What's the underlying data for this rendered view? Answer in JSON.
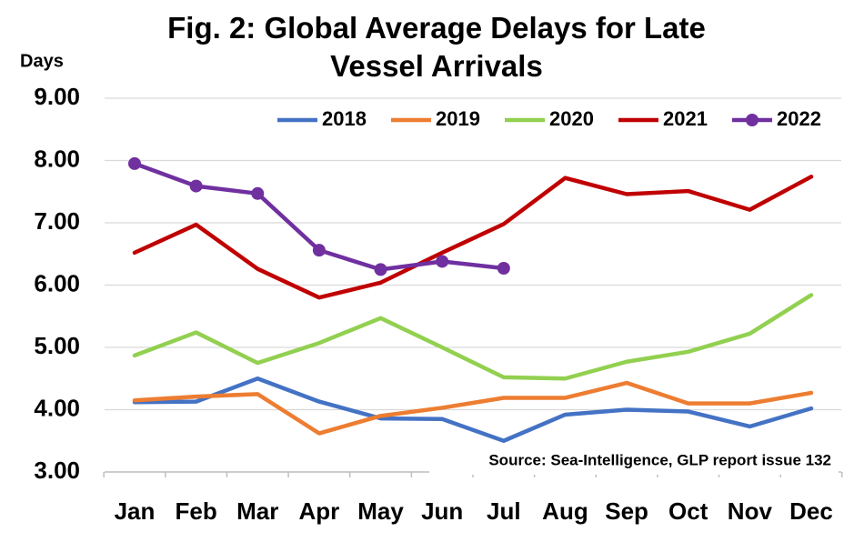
{
  "chart_data": {
    "type": "line",
    "title": "Fig. 2: Global Average Delays for Late Vessel Arrivals",
    "y_label": "Days",
    "annotation": "Source: Sea-Intelligence, GLP report issue 132",
    "categories": [
      "Jan",
      "Feb",
      "Mar",
      "Apr",
      "May",
      "Jun",
      "Jul",
      "Aug",
      "Sep",
      "Oct",
      "Nov",
      "Dec"
    ],
    "series": [
      {
        "name": "2018",
        "color": "#4472c4",
        "values": [
          4.12,
          4.13,
          4.5,
          4.13,
          3.86,
          3.85,
          3.5,
          3.92,
          4.0,
          3.97,
          3.73,
          4.02
        ]
      },
      {
        "name": "2019",
        "color": "#ed7d31",
        "values": [
          4.15,
          4.21,
          4.25,
          3.62,
          3.9,
          4.03,
          4.19,
          4.19,
          4.43,
          4.1,
          4.1,
          4.27
        ]
      },
      {
        "name": "2020",
        "color": "#92d050",
        "values": [
          4.87,
          5.24,
          4.75,
          5.07,
          5.47,
          5.0,
          4.52,
          4.5,
          4.77,
          4.93,
          5.22,
          5.84
        ]
      },
      {
        "name": "2021",
        "color": "#c00000",
        "values": [
          6.52,
          6.97,
          6.26,
          5.8,
          6.04,
          6.52,
          6.98,
          7.72,
          7.46,
          7.51,
          7.21,
          7.74
        ]
      },
      {
        "name": "2022",
        "color": "#7030a0",
        "markers": true,
        "values": [
          7.95,
          7.59,
          7.47,
          6.56,
          6.25,
          6.38,
          6.27,
          null,
          null,
          null,
          null,
          null
        ]
      }
    ],
    "ylim": [
      3,
      9
    ],
    "yticks": [
      {
        "value": 3,
        "label": "3.00"
      },
      {
        "value": 4,
        "label": "4.00"
      },
      {
        "value": 5,
        "label": "5.00"
      },
      {
        "value": 6,
        "label": "6.00"
      },
      {
        "value": 7,
        "label": "7.00"
      },
      {
        "value": 8,
        "label": "8.00"
      },
      {
        "value": 9,
        "label": "9.00"
      }
    ],
    "grid": true,
    "legend": "top-right"
  }
}
